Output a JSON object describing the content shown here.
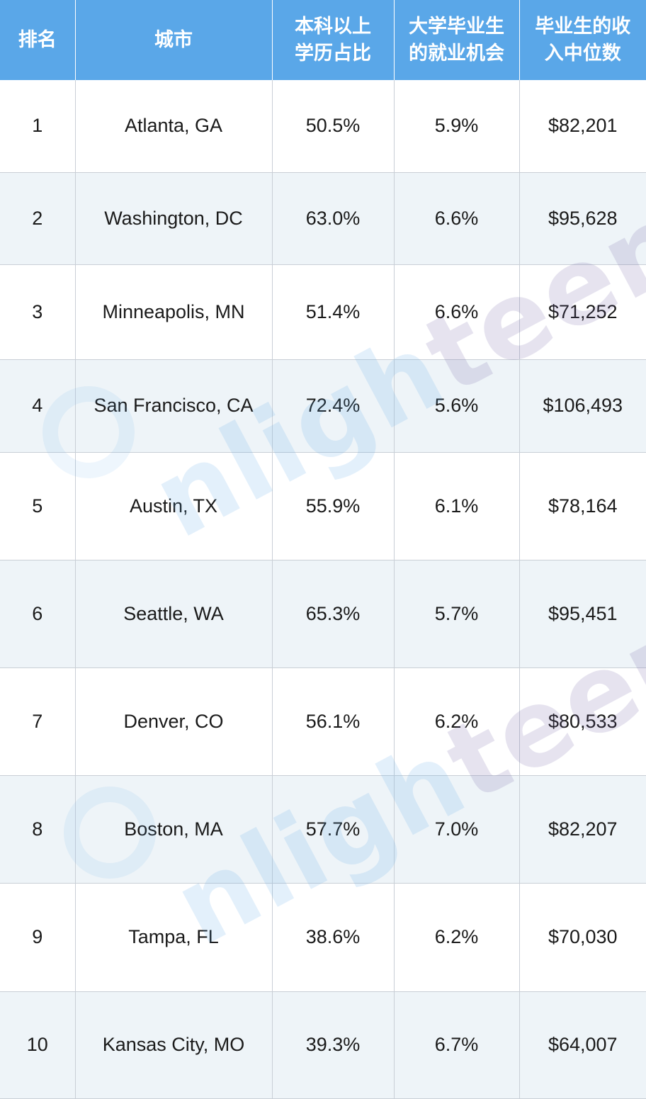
{
  "table": {
    "headers": {
      "rank": "排名",
      "city": "城市",
      "degree_line1": "本科以上",
      "degree_line2": "学历占比",
      "jobs_line1": "大学毕业生",
      "jobs_line2": "的就业机会",
      "income_line1": "毕业生的收",
      "income_line2": "入中位数"
    },
    "rows": [
      {
        "rank": "1",
        "city": "Atlanta, GA",
        "degree": "50.5%",
        "jobs": "5.9%",
        "income": "$82,201"
      },
      {
        "rank": "2",
        "city": "Washington, DC",
        "degree": "63.0%",
        "jobs": "6.6%",
        "income": "$95,628"
      },
      {
        "rank": "3",
        "city": "Minneapolis, MN",
        "degree": "51.4%",
        "jobs": "6.6%",
        "income": "$71,252"
      },
      {
        "rank": "4",
        "city": "San Francisco, CA",
        "degree": "72.4%",
        "jobs": "5.6%",
        "income": "$106,493"
      },
      {
        "rank": "5",
        "city": "Austin, TX",
        "degree": "55.9%",
        "jobs": "6.1%",
        "income": "$78,164"
      },
      {
        "rank": "6",
        "city": "Seattle, WA",
        "degree": "65.3%",
        "jobs": "5.7%",
        "income": "$95,451"
      },
      {
        "rank": "7",
        "city": "Denver, CO",
        "degree": "56.1%",
        "jobs": "6.2%",
        "income": "$80,533"
      },
      {
        "rank": "8",
        "city": "Boston, MA",
        "degree": "57.7%",
        "jobs": "7.0%",
        "income": "$82,207"
      },
      {
        "rank": "9",
        "city": "Tampa, FL",
        "degree": "38.6%",
        "jobs": "6.2%",
        "income": "$70,030"
      },
      {
        "rank": "10",
        "city": "Kansas City, MO",
        "degree": "39.3%",
        "jobs": "6.7%",
        "income": "$64,007"
      }
    ]
  },
  "watermark": {
    "part1": "nligh",
    "part2": "teens"
  },
  "colors": {
    "header_bg": "#5aa7e8",
    "row_alt_bg": "#eef4f8",
    "border": "#c9cfd6"
  }
}
